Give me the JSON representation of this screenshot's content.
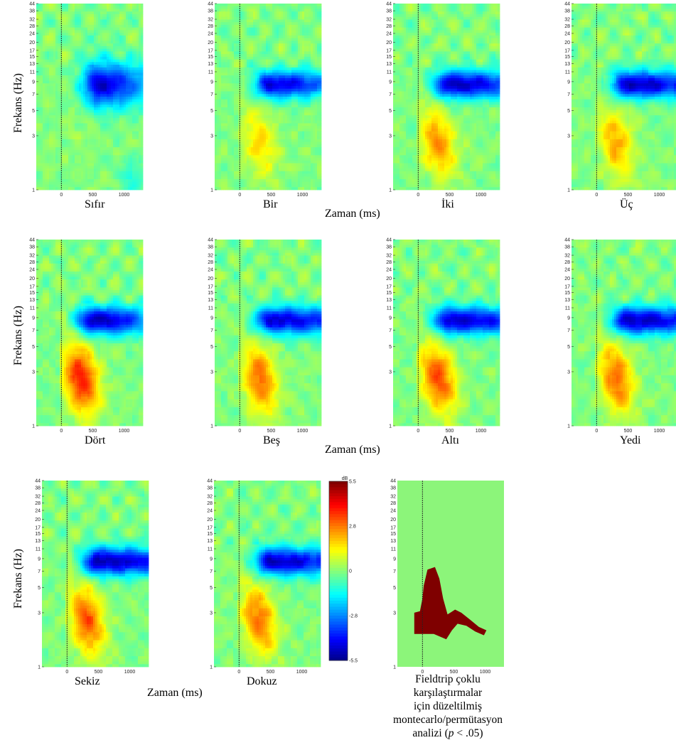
{
  "chart_data": {
    "type": "heatmap",
    "colorbar": {
      "unit": "dB",
      "ticks": [
        "5.5",
        "2.8",
        "0",
        "-2.8",
        "-5.5"
      ],
      "range": [
        -5.5,
        5.5
      ]
    },
    "y_axis": {
      "label": "Frekans (Hz)",
      "scale": "log",
      "ticks": [
        "44",
        "38",
        "32",
        "28",
        "24",
        "20",
        "17",
        "15",
        "13",
        "11",
        "9",
        "7",
        "5",
        "3",
        "1"
      ]
    },
    "x_axis": {
      "label": "Zaman (ms)",
      "ticks": [
        "0",
        "500",
        "1000"
      ],
      "range": [
        -400,
        1300
      ]
    },
    "panels": [
      {
        "name": "Sıfır",
        "alpha": null,
        "alpha_spread": 0,
        "alpha_tail": 0.35,
        "alpha_center_ms": 600,
        "theta": 0.25,
        "low": 0.15
      },
      {
        "name": "Bir",
        "alpha": -4.5,
        "alpha_spread": 0,
        "alpha_tail": 0.6,
        "alpha_center_ms": 500,
        "theta": 1.8,
        "low": 0
      },
      {
        "name": "İki",
        "alpha": -4.8,
        "alpha_spread": 0,
        "alpha_tail": 0.8,
        "alpha_center_ms": 500,
        "theta": 2.6,
        "low": 0
      },
      {
        "name": "Üç",
        "alpha": -4.8,
        "alpha_spread": 0,
        "alpha_tail": 0.9,
        "alpha_center_ms": 500,
        "theta": 2.3,
        "low": 0
      },
      {
        "name": "Dört",
        "alpha": -5.0,
        "alpha_spread": 0,
        "alpha_tail": 0.5,
        "alpha_center_ms": 500,
        "theta": 4.0,
        "low": 0
      },
      {
        "name": "Beş",
        "alpha": -4.6,
        "alpha_spread": 0,
        "alpha_tail": 1.0,
        "alpha_center_ms": 500,
        "theta": 3.0,
        "low": 0
      },
      {
        "name": "Altı",
        "alpha": -4.8,
        "alpha_spread": 0,
        "alpha_tail": 0.9,
        "alpha_center_ms": 500,
        "theta": 3.4,
        "low": 0
      },
      {
        "name": "Yedi",
        "alpha": -4.8,
        "alpha_spread": 0,
        "alpha_tail": 1.0,
        "alpha_center_ms": 500,
        "theta": 3.0,
        "low": 0
      },
      {
        "name": "Sekiz",
        "alpha": -5.0,
        "alpha_spread": 0,
        "alpha_tail": 1.0,
        "alpha_center_ms": 500,
        "theta": 3.2,
        "low": 0
      },
      {
        "name": "Dokuz",
        "alpha": -4.8,
        "alpha_spread": 0,
        "alpha_tail": 0.9,
        "alpha_center_ms": 500,
        "theta": 3.0,
        "low": 0
      }
    ],
    "significance": {
      "title": "Fieldtrip çoklu karşılaştırmalar için düzeltilmiş montecarlo/permütasyon analizi (p < .05)"
    }
  },
  "x_axis_label": "Zaman (ms)",
  "y_axis_label": "Frekans (Hz)",
  "note_lines": [
    "Fieldtrip çoklu",
    "karşılaştırmalar",
    "için düzeltilmiş",
    "montecarlo/permütasyon"
  ],
  "note_last_prefix": "analizi (",
  "note_last_p": "p",
  "note_last_suffix": " < .05)",
  "colors": {
    "sig_background": "#8cf57a",
    "sig_region": "#7f0000"
  }
}
